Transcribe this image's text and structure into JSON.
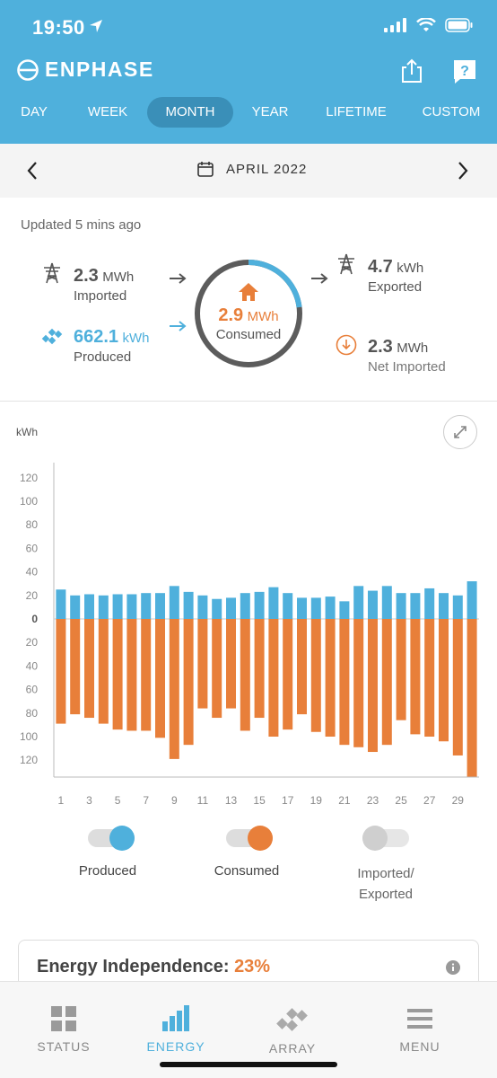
{
  "status_bar": {
    "time": "19:50"
  },
  "header": {
    "brand": "ENPHASE",
    "share_icon": "share-icon",
    "help_icon": "help-icon",
    "tabs": [
      {
        "label": "DAY",
        "active": false
      },
      {
        "label": "WEEK",
        "active": false
      },
      {
        "label": "MONTH",
        "active": true
      },
      {
        "label": "YEAR",
        "active": false
      },
      {
        "label": "LIFETIME",
        "active": false
      },
      {
        "label": "CUSTOM",
        "active": false
      }
    ]
  },
  "date_nav": {
    "label": "APRIL 2022"
  },
  "summary": {
    "updated": "Updated 5 mins ago",
    "imported": {
      "value": "2.3",
      "unit": "MWh",
      "label": "Imported"
    },
    "produced": {
      "value": "662.1",
      "unit": "kWh",
      "label": "Produced"
    },
    "consumed": {
      "value": "2.9",
      "unit": "MWh",
      "label": "Consumed"
    },
    "exported": {
      "value": "4.7",
      "unit": "kWh",
      "label": "Exported"
    },
    "net_imported": {
      "value": "2.3",
      "unit": "MWh",
      "label": "Net Imported"
    },
    "consumed_solar_fraction": 0.23
  },
  "colors": {
    "primary_blue": "#4fb0dc",
    "consumed_orange": "#e87f3a",
    "toggle_grey": "#cfcfcf"
  },
  "chart_data": {
    "type": "bar",
    "ylabel": "kWh",
    "ylim": [
      -130,
      130
    ],
    "y_ticks": [
      120,
      100,
      80,
      60,
      40,
      20,
      0,
      20,
      40,
      60,
      80,
      100,
      120
    ],
    "x": [
      1,
      2,
      3,
      4,
      5,
      6,
      7,
      8,
      9,
      10,
      11,
      12,
      13,
      14,
      15,
      16,
      17,
      18,
      19,
      20,
      21,
      22,
      23,
      24,
      25,
      26,
      27,
      28,
      29,
      30
    ],
    "x_tick_labels": [
      "1",
      "3",
      "5",
      "7",
      "9",
      "11",
      "13",
      "15",
      "17",
      "19",
      "21",
      "23",
      "25",
      "27",
      "29"
    ],
    "series": [
      {
        "name": "Produced",
        "color": "#4fb0dc",
        "values": [
          25,
          20,
          21,
          20,
          21,
          21,
          22,
          22,
          28,
          23,
          20,
          17,
          18,
          22,
          23,
          27,
          22,
          18,
          18,
          19,
          15,
          28,
          24,
          28,
          22,
          22,
          26,
          22,
          20,
          32
        ]
      },
      {
        "name": "Consumed",
        "color": "#e87f3a",
        "values": [
          -89,
          -81,
          -84,
          -89,
          -94,
          -95,
          -95,
          -101,
          -119,
          -107,
          -76,
          -84,
          -76,
          -95,
          -84,
          -100,
          -94,
          -81,
          -96,
          -100,
          -107,
          -109,
          -113,
          -107,
          -86,
          -98,
          -100,
          -104,
          -116,
          -134
        ]
      }
    ]
  },
  "toggles": [
    {
      "label": "Produced",
      "on": true,
      "color": "#4fb0dc"
    },
    {
      "label": "Consumed",
      "on": true,
      "color": "#e87f3a"
    },
    {
      "label": "Imported/\nExported",
      "on": false,
      "color": "#cfcfcf"
    }
  ],
  "independence": {
    "label": "Energy Independence:",
    "value": "23%"
  },
  "bottom_nav": [
    {
      "label": "STATUS",
      "icon": "status-grid-icon",
      "active": false
    },
    {
      "label": "ENERGY",
      "icon": "energy-bars-icon",
      "active": true
    },
    {
      "label": "ARRAY",
      "icon": "array-panels-icon",
      "active": false
    },
    {
      "label": "MENU",
      "icon": "menu-icon",
      "active": false
    }
  ]
}
